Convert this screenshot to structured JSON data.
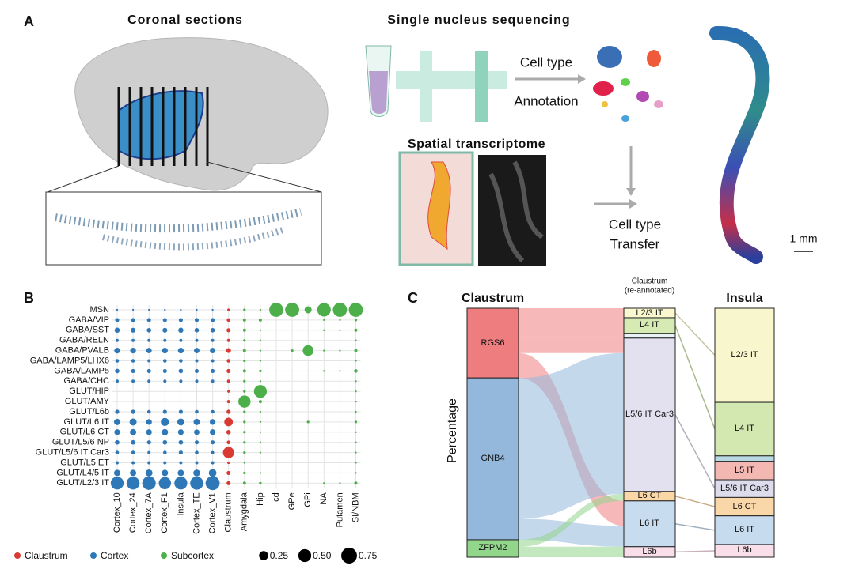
{
  "panel_a": {
    "label": "A",
    "title": "Coronal sections",
    "sequencing_title": "Single nucleus sequencing",
    "annotation_label": [
      "Cell type",
      "Annotation"
    ],
    "spatial_title": "Spatial transcriptome",
    "transfer_label": [
      "Cell type",
      "Transfer"
    ],
    "scale_bar": "1 mm"
  },
  "chart_data": [
    {
      "type": "dot",
      "panel": "B",
      "rows": [
        "MSN",
        "GABA/VIP",
        "GABA/SST",
        "GABA/RELN",
        "GABA/PVALB",
        "GABA/LAMP5/LHX6",
        "GABA/LAMP5",
        "GABA/CHC",
        "GLUT/HIP",
        "GLUT/AMY",
        "GLUT/L6b",
        "GLUT/L6 IT",
        "GLUT/L6 CT",
        "GLUT/L5/6 NP",
        "GLUT/L5/6 IT Car3",
        "GLUT/L5 ET",
        "GLUT/L4/5 IT",
        "GLUT/L2/3 IT"
      ],
      "columns": [
        "Cortex_10",
        "Cortex_24",
        "Cortex_7A",
        "Cortex_F1",
        "Insula",
        "Cortex_TE",
        "Cortex_V1",
        "Claustrum",
        "Amygdala",
        "Hip",
        "cd",
        "GPe",
        "GPi",
        "NA",
        "Putamen",
        "SI/NBM"
      ],
      "column_groups": [
        1,
        1,
        1,
        1,
        1,
        1,
        1,
        0,
        2,
        2,
        2,
        2,
        2,
        2,
        2,
        2
      ],
      "groups": [
        {
          "name": "Claustrum",
          "color": "#d93a32"
        },
        {
          "name": "Cortex",
          "color": "#2f78b7"
        },
        {
          "name": "Subcortex",
          "color": "#4daf4a"
        }
      ],
      "values": [
        [
          0.01,
          0.01,
          0.01,
          0.01,
          0.01,
          0.01,
          0.01,
          0.02,
          0.02,
          0.01,
          0.6,
          0.6,
          0.15,
          0.55,
          0.6,
          0.6
        ],
        [
          0.05,
          0.05,
          0.05,
          0.05,
          0.05,
          0.05,
          0.05,
          0.04,
          0.03,
          0.03,
          0,
          0,
          0,
          0.01,
          0.01,
          0.02
        ],
        [
          0.08,
          0.07,
          0.06,
          0.07,
          0.08,
          0.06,
          0.06,
          0.05,
          0.03,
          0.01,
          0,
          0,
          0,
          0.01,
          0.01,
          0.03
        ],
        [
          0.03,
          0.03,
          0.03,
          0.03,
          0.03,
          0.03,
          0.03,
          0.03,
          0.02,
          0.01,
          0,
          0,
          0,
          0,
          0,
          0.01
        ],
        [
          0.1,
          0.1,
          0.09,
          0.1,
          0.1,
          0.09,
          0.09,
          0.07,
          0.03,
          0.01,
          0,
          0.02,
          0.35,
          0.01,
          0.01,
          0.03
        ],
        [
          0.04,
          0.04,
          0.03,
          0.04,
          0.04,
          0.03,
          0.03,
          0.04,
          0.02,
          0.01,
          0,
          0,
          0,
          0,
          0,
          0.01
        ],
        [
          0.06,
          0.05,
          0.05,
          0.05,
          0.06,
          0.05,
          0.05,
          0.05,
          0.03,
          0.02,
          0,
          0,
          0,
          0.01,
          0.01,
          0.04
        ],
        [
          0.03,
          0.03,
          0.03,
          0.03,
          0.03,
          0.03,
          0.03,
          0.03,
          0.02,
          0.01,
          0,
          0,
          0,
          0,
          0,
          0.01
        ],
        [
          0,
          0,
          0,
          0,
          0,
          0,
          0,
          0.02,
          0.02,
          0.5,
          0,
          0,
          0,
          0,
          0,
          0.01
        ],
        [
          0,
          0,
          0,
          0,
          0,
          0,
          0,
          0.03,
          0.45,
          0.03,
          0,
          0,
          0,
          0,
          0,
          0.01
        ],
        [
          0.05,
          0.05,
          0.04,
          0.05,
          0.05,
          0.04,
          0.04,
          0.05,
          0.02,
          0.01,
          0,
          0,
          0,
          0,
          0,
          0.01
        ],
        [
          0.12,
          0.15,
          0.1,
          0.2,
          0.15,
          0.12,
          0.1,
          0.22,
          0.02,
          0.01,
          0,
          0,
          0.02,
          0,
          0,
          0.02
        ],
        [
          0.1,
          0.12,
          0.1,
          0.12,
          0.1,
          0.09,
          0.1,
          0.06,
          0.02,
          0.01,
          0,
          0,
          0,
          0,
          0,
          0.01
        ],
        [
          0.06,
          0.06,
          0.05,
          0.06,
          0.06,
          0.05,
          0.05,
          0.04,
          0.02,
          0.01,
          0,
          0,
          0,
          0,
          0,
          0.01
        ],
        [
          0.04,
          0.04,
          0.03,
          0.04,
          0.05,
          0.04,
          0.03,
          0.38,
          0.02,
          0.01,
          0,
          0,
          0,
          0,
          0,
          0.01
        ],
        [
          0.03,
          0.03,
          0.03,
          0.03,
          0.03,
          0.03,
          0.03,
          0.02,
          0.01,
          0,
          0,
          0,
          0,
          0,
          0,
          0.01
        ],
        [
          0.12,
          0.12,
          0.15,
          0.12,
          0.12,
          0.14,
          0.18,
          0.05,
          0.02,
          0.01,
          0,
          0,
          0,
          0,
          0,
          0.01
        ],
        [
          0.5,
          0.5,
          0.55,
          0.45,
          0.5,
          0.52,
          0.6,
          0.05,
          0.03,
          0.02,
          0,
          0,
          0,
          0.01,
          0.01,
          0.03
        ]
      ],
      "size_ticks": [
        0.25,
        {
          "value": 0.5,
          "label": "0.50"
        },
        0.75
      ],
      "grid": true
    },
    {
      "type": "sankey",
      "panel": "C",
      "y_label": "Percentage",
      "columns": [
        {
          "name_lines": [
            "Claustrum"
          ],
          "nodes": [
            {
              "label": "RGS6",
              "value": 28,
              "color": "#ee7d80"
            },
            {
              "label": "GNB4",
              "value": 65,
              "color": "#94b8dc"
            },
            {
              "label": "ZFPM2",
              "value": 7,
              "color": "#92d68c"
            }
          ]
        },
        {
          "name_lines": [
            "Claustrum",
            "(re-annotated)"
          ],
          "nodes": [
            {
              "label": "L2/3 IT",
              "value": 3.8,
              "color": "#fbf8cf"
            },
            {
              "label": "L4 IT",
              "value": 6.3,
              "color": "#d6ebb3"
            },
            {
              "label": null,
              "value": 1.9,
              "color": "#e9f2f7"
            },
            {
              "label": "L5/6 IT Car3",
              "value": 61.6,
              "color": "#e3e1f0"
            },
            {
              "label": "L6 CT",
              "value": 3.8,
              "color": "#fbd7a6"
            },
            {
              "label": "L6 IT",
              "value": 18.4,
              "color": "#c7dcee"
            },
            {
              "label": "L6b",
              "value": 4.2,
              "color": "#f9dde9"
            }
          ]
        },
        {
          "name_lines": [
            "Insula"
          ],
          "nodes": [
            {
              "label": "L2/3 IT",
              "value": 37.8,
              "color": "#f8f6cc"
            },
            {
              "label": "L4 IT",
              "value": 21.5,
              "color": "#d2e8b0"
            },
            {
              "label": null,
              "value": 2.2,
              "color": "#b8d9e4"
            },
            {
              "label": "L5 IT",
              "value": 7.4,
              "color": "#f3b8b2"
            },
            {
              "label": "L5/6 IT Car3",
              "value": 7.1,
              "color": "#dcdcec"
            },
            {
              "label": "L6 CT",
              "value": 7.4,
              "color": "#f9d7a8"
            },
            {
              "label": "L6 IT",
              "value": 11.5,
              "color": "#c6dbee"
            },
            {
              "label": "L6b",
              "value": 5.1,
              "color": "#f9dde9"
            }
          ]
        }
      ],
      "links": [
        {
          "source": 0,
          "target": 0,
          "value": 3.8
        },
        {
          "source": 0,
          "target": 1,
          "value": 6.3
        },
        {
          "source": 0,
          "target": 2,
          "value": 1.9
        },
        {
          "source": 0,
          "target": 3,
          "value": 6
        },
        {
          "source": 0,
          "target": 5,
          "value": 10
        },
        {
          "source": 1,
          "target": 3,
          "value": 55.6
        },
        {
          "source": 1,
          "target": 4,
          "value": 1
        },
        {
          "source": 1,
          "target": 5,
          "value": 8.4
        },
        {
          "source": 2,
          "target": 4,
          "value": 2.8
        },
        {
          "source": 2,
          "target": 6,
          "value": 4.2
        }
      ]
    }
  ]
}
